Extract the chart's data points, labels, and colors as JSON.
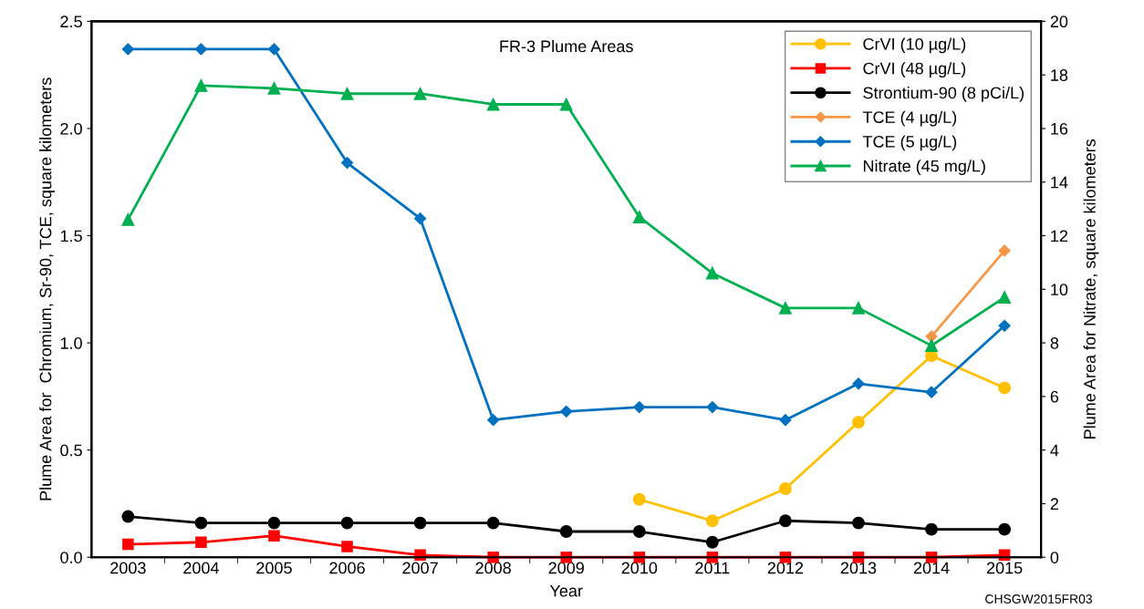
{
  "chart_data": {
    "type": "line",
    "title": "FR-3 Plume Areas",
    "xlabel": "Year",
    "ylabel": "Plume Area for  Chromium, Sr-90, TCE, square kilometers",
    "y2label": "Plume Area for Nitrate, square kilometers",
    "categories": [
      "2003",
      "2004",
      "2005",
      "2006",
      "2007",
      "2008",
      "2009",
      "2010",
      "2011",
      "2012",
      "2013",
      "2014",
      "2015"
    ],
    "series": [
      {
        "name": "CrVI (10 µg/L)",
        "color": "#ffc000",
        "marker": "circle",
        "values": [
          null,
          null,
          null,
          null,
          null,
          null,
          null,
          0.27,
          0.17,
          0.32,
          0.63,
          0.94,
          0.79
        ]
      },
      {
        "name": "CrVI (48 µg/L)",
        "color": "#ff0000",
        "marker": "square",
        "values": [
          0.06,
          0.07,
          0.1,
          0.05,
          0.01,
          0.0,
          0.0,
          0.0,
          0.0,
          0.0,
          0.0,
          0.0,
          0.01
        ]
      },
      {
        "name": "Strontium-90 (8 pCi/L)",
        "color": "#000000",
        "marker": "circle",
        "values": [
          0.19,
          0.16,
          0.16,
          0.16,
          0.16,
          0.16,
          0.12,
          0.12,
          0.07,
          0.17,
          0.16,
          0.13,
          0.13
        ]
      },
      {
        "name": "TCE (4 µg/L)",
        "color": "#f79646",
        "marker": "diamond",
        "values": [
          null,
          null,
          null,
          null,
          null,
          null,
          null,
          null,
          null,
          null,
          null,
          1.03,
          1.43
        ]
      },
      {
        "name": "TCE (5 µg/L)",
        "color": "#0070c0",
        "marker": "diamond",
        "values": [
          2.37,
          2.37,
          2.37,
          1.84,
          1.58,
          0.64,
          0.68,
          0.7,
          0.7,
          0.64,
          0.81,
          0.77,
          1.08
        ]
      },
      {
        "name": "Nitrate (45 mg/L)",
        "color": "#00b050",
        "marker": "triangle",
        "axis": "y2",
        "values": [
          12.6,
          17.6,
          17.5,
          17.3,
          17.3,
          16.9,
          16.9,
          12.7,
          10.6,
          9.3,
          9.3,
          7.9,
          9.7
        ]
      }
    ],
    "ylim": [
      0,
      2.5
    ],
    "yticks": [
      {
        "value": 0,
        "label": "0.0"
      },
      {
        "value": 0.5,
        "label": "0.5"
      },
      {
        "value": 1,
        "label": "1.0"
      },
      {
        "value": 1.5,
        "label": "1.5"
      },
      {
        "value": 2,
        "label": "2.0"
      },
      {
        "value": 2.5,
        "label": "2.5"
      }
    ],
    "y2lim": [
      0,
      20
    ],
    "y2ticks": [
      0,
      2,
      4,
      6,
      8,
      10,
      12,
      14,
      16,
      18,
      20
    ],
    "legend": "top right",
    "grid": false,
    "annotations": [
      "CHSGW2015FR03"
    ]
  }
}
